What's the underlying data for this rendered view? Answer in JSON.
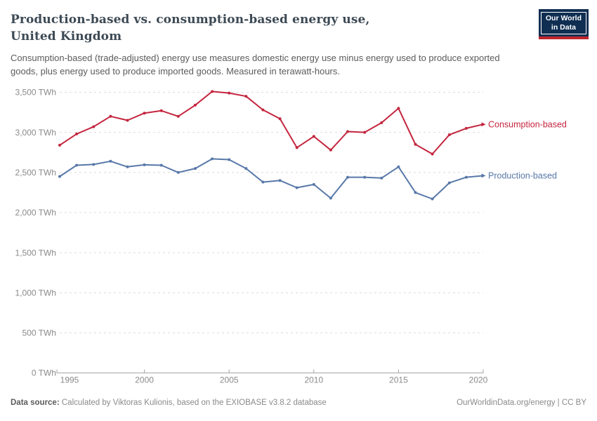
{
  "header": {
    "title": "Production-based vs. consumption-based energy use, United Kingdom",
    "subtitle": "Consumption-based (trade-adjusted) energy use measures domestic energy use minus energy used to produce exported goods, plus energy used to produce imported goods. Measured in terawatt-hours.",
    "logo": {
      "line1": "Our World",
      "line2": "in Data"
    }
  },
  "chart_data": {
    "type": "line",
    "title": "Production-based vs. consumption-based energy use, United Kingdom",
    "unit": "TWh",
    "x": [
      1995,
      1996,
      1997,
      1998,
      1999,
      2000,
      2001,
      2002,
      2003,
      2004,
      2005,
      2006,
      2007,
      2008,
      2009,
      2010,
      2011,
      2012,
      2013,
      2014,
      2015,
      2016,
      2017,
      2018,
      2019,
      2020
    ],
    "series": [
      {
        "name": "Consumption-based",
        "color": "#c4253e",
        "values": [
          2840,
          2980,
          3070,
          3200,
          3150,
          3240,
          3270,
          3200,
          3340,
          3510,
          3490,
          3450,
          3280,
          3170,
          2810,
          2950,
          2780,
          3010,
          3000,
          3120,
          3300,
          2850,
          2730,
          2970,
          3050,
          3100
        ]
      },
      {
        "name": "Production-based",
        "color": "#5878a8",
        "values": [
          2450,
          2590,
          2600,
          2640,
          2570,
          2595,
          2590,
          2500,
          2550,
          2670,
          2660,
          2550,
          2380,
          2400,
          2310,
          2350,
          2180,
          2440,
          2440,
          2430,
          2570,
          2250,
          2170,
          2370,
          2440,
          2460
        ]
      }
    ],
    "xlabel": "",
    "ylabel": "",
    "ylim": [
      0,
      3500
    ],
    "ytick_step": 500,
    "ytick_suffix": " TWh",
    "xticks": [
      1995,
      2000,
      2005,
      2010,
      2015,
      2020
    ],
    "grid": "horizontal-dashed",
    "legend_position": "end-of-line-labels"
  },
  "colors": {
    "grid": "#dcdcdc",
    "axis": "#a5a5a5",
    "tick_label": "#8a8a8a",
    "consumption": "#c4253e",
    "production": "#5878a8"
  },
  "footer": {
    "source_label": "Data source:",
    "source_text": " Calculated by Viktoras Kulionis, based on the EXIOBASE v3.8.2 database",
    "rights": "OurWorldinData.org/energy | CC BY"
  }
}
